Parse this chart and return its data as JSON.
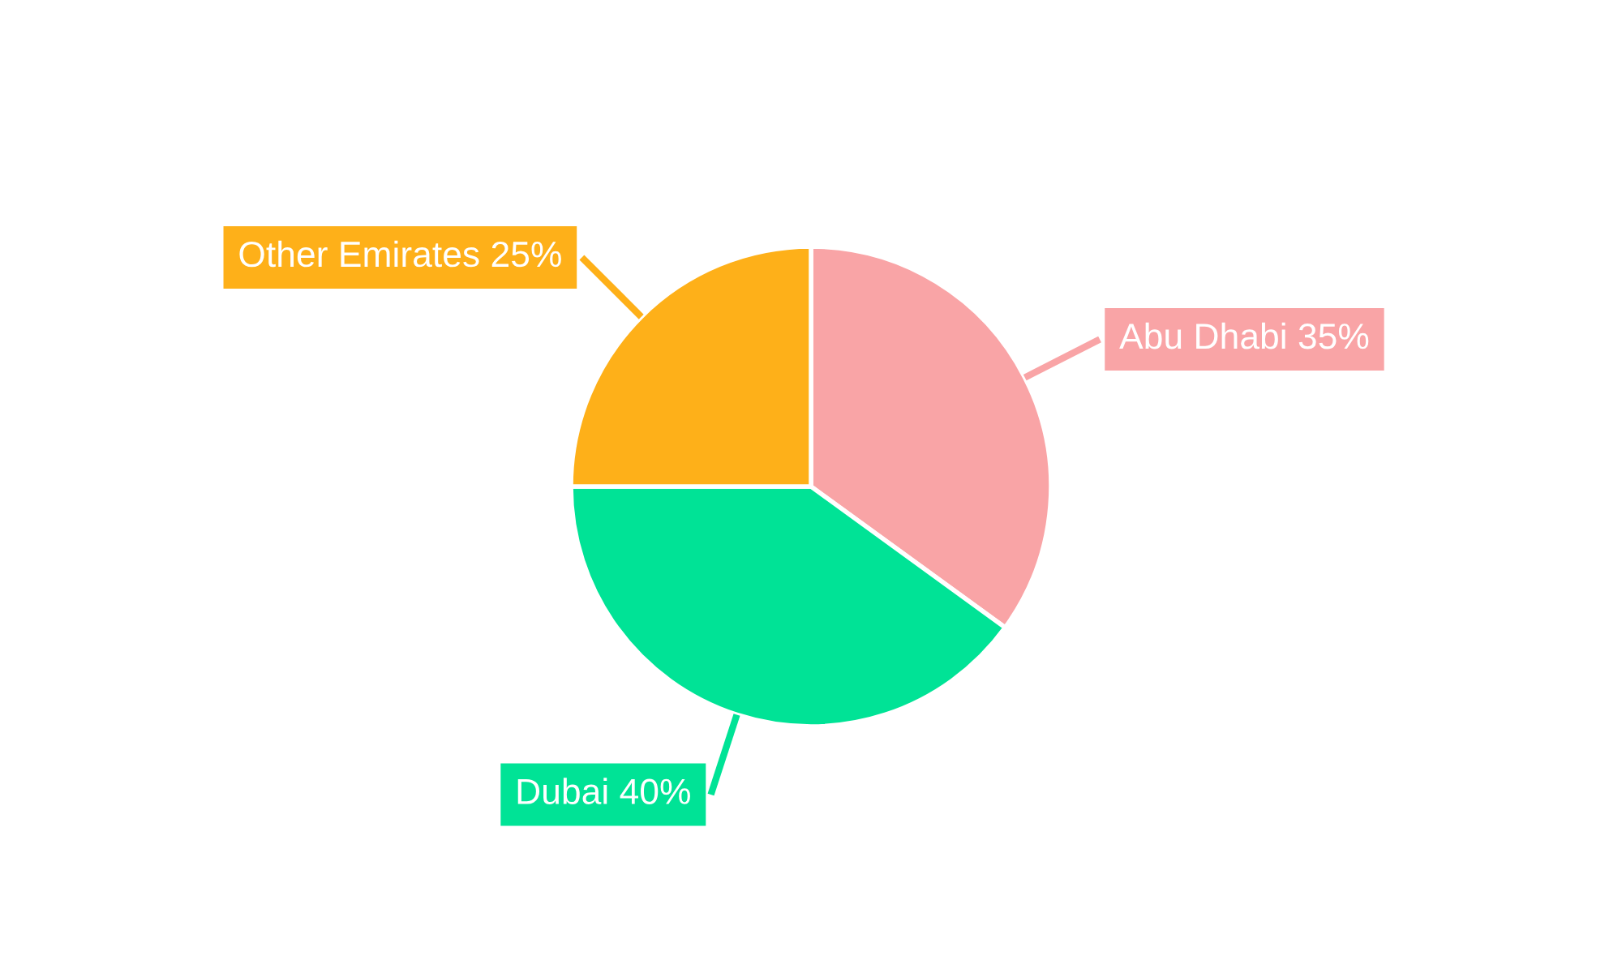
{
  "chart_data": {
    "type": "pie",
    "categories": [
      "Abu Dhabi",
      "Dubai",
      "Other Emirates"
    ],
    "values": [
      35,
      40,
      25
    ],
    "colors": [
      "#f9a4a6",
      "#00e396",
      "#feb019"
    ],
    "value_labels": [
      "35%",
      "40%",
      "25%"
    ],
    "legend": false
  }
}
